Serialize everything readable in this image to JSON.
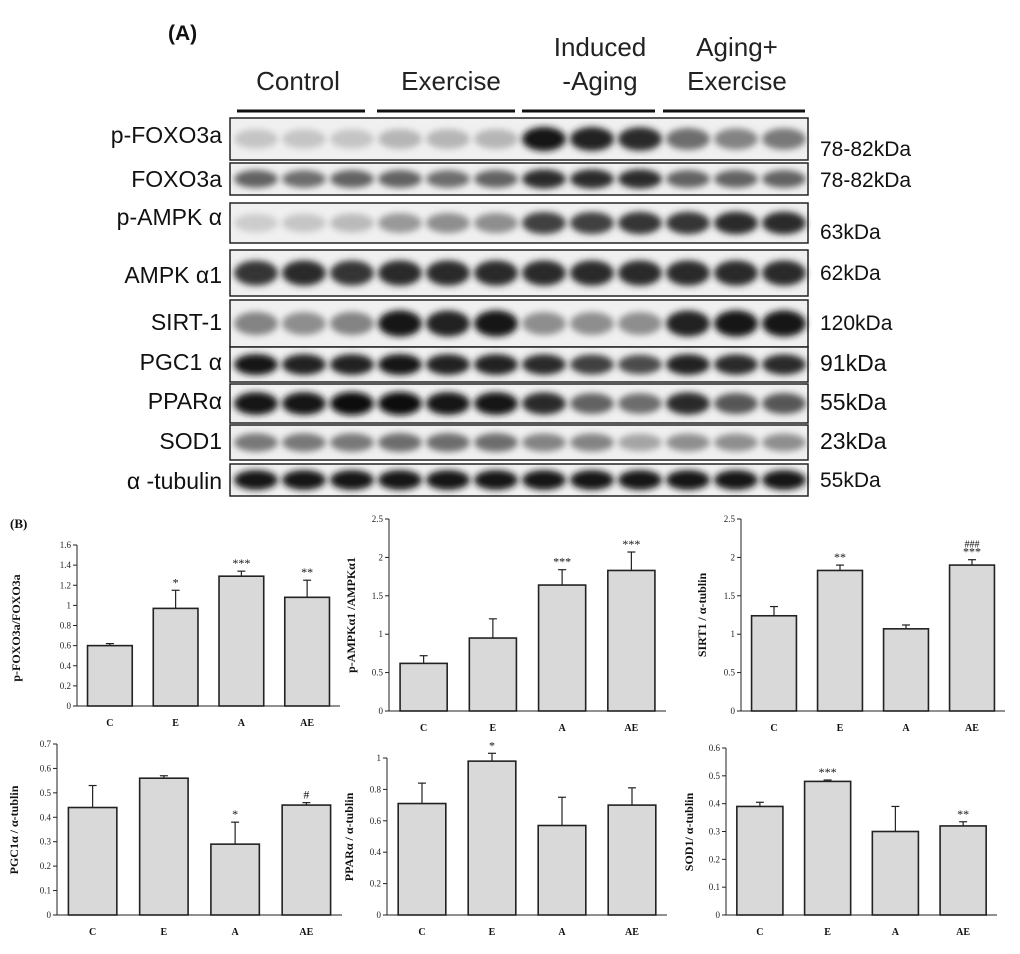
{
  "panel_a": {
    "label": "(A)",
    "groups": [
      "Control",
      "Exercise",
      "Induced\n-Aging",
      "Aging+\nExercise"
    ],
    "bands": [
      {
        "protein": "p-FOXO3a",
        "size": "78-82kDa",
        "intensity": [
          0.15,
          0.15,
          0.15,
          0.22,
          0.22,
          0.22,
          0.95,
          0.9,
          0.85,
          0.55,
          0.45,
          0.5
        ]
      },
      {
        "protein": "FOXO3a",
        "size": "78-82kDa",
        "intensity": [
          0.6,
          0.55,
          0.6,
          0.6,
          0.55,
          0.6,
          0.85,
          0.85,
          0.85,
          0.6,
          0.6,
          0.6
        ]
      },
      {
        "protein": "p-AMPK α",
        "size": "63kDa",
        "intensity": [
          0.12,
          0.15,
          0.2,
          0.35,
          0.4,
          0.4,
          0.75,
          0.75,
          0.8,
          0.8,
          0.85,
          0.85
        ]
      },
      {
        "protein": "AMPK α1",
        "size": "62kDa",
        "intensity": [
          0.8,
          0.85,
          0.8,
          0.85,
          0.85,
          0.85,
          0.85,
          0.85,
          0.85,
          0.85,
          0.85,
          0.85
        ]
      },
      {
        "protein": "SIRT-1",
        "size": "120kDa",
        "intensity": [
          0.45,
          0.4,
          0.45,
          0.95,
          0.9,
          0.95,
          0.4,
          0.4,
          0.4,
          0.9,
          0.95,
          0.95
        ]
      },
      {
        "protein": "PGC1 α",
        "size": "91kDa",
        "intensity": [
          0.95,
          0.9,
          0.9,
          0.95,
          0.9,
          0.9,
          0.85,
          0.75,
          0.7,
          0.9,
          0.85,
          0.85
        ]
      },
      {
        "protein": "PPARα",
        "size": "55kDa",
        "intensity": [
          0.95,
          0.95,
          1.0,
          1.0,
          0.95,
          0.95,
          0.85,
          0.6,
          0.55,
          0.85,
          0.65,
          0.65
        ]
      },
      {
        "protein": "SOD1",
        "size": "23kDa",
        "intensity": [
          0.5,
          0.5,
          0.5,
          0.55,
          0.55,
          0.55,
          0.45,
          0.45,
          0.3,
          0.4,
          0.4,
          0.4
        ]
      },
      {
        "protein": "α -tubulin",
        "size": "55kDa",
        "intensity": [
          0.95,
          0.95,
          0.95,
          0.95,
          0.95,
          0.95,
          0.95,
          0.95,
          0.95,
          0.95,
          0.95,
          0.95
        ]
      }
    ]
  },
  "panel_b_label": "(B)",
  "chart_data": [
    {
      "type": "bar",
      "categories": [
        "C",
        "E",
        "A",
        "AE"
      ],
      "values": [
        0.6,
        0.97,
        1.29,
        1.08
      ],
      "errors": [
        0.02,
        0.18,
        0.05,
        0.17
      ],
      "annotations": [
        "",
        "*",
        "***",
        "**"
      ],
      "ylabel": "p-FOXO3a/FOXO3a",
      "ylim": [
        0,
        1.6
      ],
      "yticks": [
        "0",
        "0.2",
        "0.4",
        "0.6",
        "0.8",
        "1",
        "1.2",
        "1.4",
        "1.6"
      ]
    },
    {
      "type": "bar",
      "categories": [
        "C",
        "E",
        "A",
        "AE"
      ],
      "values": [
        0.62,
        0.95,
        1.64,
        1.83
      ],
      "errors": [
        0.1,
        0.25,
        0.2,
        0.24
      ],
      "annotations": [
        "",
        "",
        "***",
        "***"
      ],
      "ylabel": "p-AMPKα1 /AMPKα1",
      "ylim": [
        0,
        2.5
      ],
      "yticks": [
        "0",
        "0.5",
        "1",
        "1.5",
        "2",
        "2.5"
      ]
    },
    {
      "type": "bar",
      "categories": [
        "C",
        "E",
        "A",
        "AE"
      ],
      "values": [
        1.24,
        1.83,
        1.07,
        1.9
      ],
      "errors": [
        0.12,
        0.07,
        0.05,
        0.07
      ],
      "annotations": [
        "",
        "**",
        "",
        "***"
      ],
      "annotations_top": [
        "",
        "",
        "",
        "###"
      ],
      "ylabel": "SIRT1 / α-tublin",
      "ylim": [
        0,
        2.5
      ],
      "yticks": [
        "0",
        "0.5",
        "1",
        "1.5",
        "2",
        "2.5"
      ]
    },
    {
      "type": "bar",
      "categories": [
        "C",
        "E",
        "A",
        "AE"
      ],
      "values": [
        0.44,
        0.56,
        0.29,
        0.45
      ],
      "errors": [
        0.09,
        0.01,
        0.09,
        0.01
      ],
      "annotations": [
        "",
        "",
        "*",
        "#"
      ],
      "ylabel": "PGC1α / α-tublin",
      "ylim": [
        0,
        0.7
      ],
      "yticks": [
        "0",
        "0.1",
        "0.2",
        "0.3",
        "0.4",
        "0.5",
        "0.6",
        "0.7"
      ]
    },
    {
      "type": "bar",
      "categories": [
        "C",
        "E",
        "A",
        "AE"
      ],
      "values": [
        0.71,
        0.98,
        0.57,
        0.7
      ],
      "errors": [
        0.13,
        0.05,
        0.18,
        0.11
      ],
      "annotations": [
        "",
        "*",
        "",
        ""
      ],
      "ylabel": "PPARα / α-tublin",
      "ylim": [
        0,
        1
      ],
      "yticks": [
        "0",
        "0.2",
        "0.4",
        "0.6",
        "0.8",
        "1"
      ]
    },
    {
      "type": "bar",
      "categories": [
        "C",
        "E",
        "A",
        "AE"
      ],
      "values": [
        0.39,
        0.48,
        0.3,
        0.32
      ],
      "errors": [
        0.015,
        0.005,
        0.09,
        0.015
      ],
      "annotations": [
        "",
        "***",
        "",
        "**"
      ],
      "ylabel": "SOD1/ α-tublin",
      "ylim": [
        0,
        0.6
      ],
      "yticks": [
        "0",
        "0.1",
        "0.2",
        "0.3",
        "0.4",
        "0.5",
        "0.6"
      ]
    }
  ]
}
